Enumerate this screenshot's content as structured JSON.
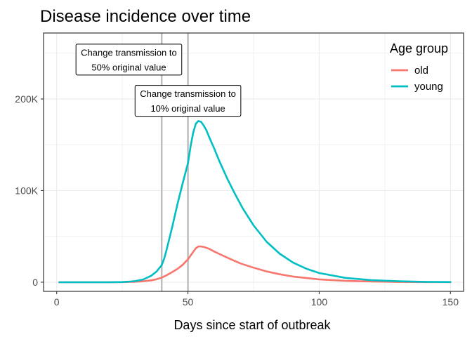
{
  "chart_data": {
    "type": "line",
    "title": "Disease incidence over time",
    "xlabel": "Days since start of outbreak",
    "ylabel": "",
    "xlim": [
      -5,
      155
    ],
    "ylim": [
      -10000,
      272000
    ],
    "x_ticks": [
      0,
      50,
      100,
      150
    ],
    "x_tick_labels": [
      "0",
      "50",
      "100",
      "150"
    ],
    "y_ticks": [
      0,
      100000,
      200000
    ],
    "y_tick_labels": [
      "0",
      "100K",
      "200K"
    ],
    "grid": true,
    "legend": {
      "title": "Age group",
      "position": "top-right"
    },
    "series": [
      {
        "name": "old",
        "color": "#F8766D",
        "x": [
          1,
          10,
          20,
          25,
          30,
          33,
          36,
          38,
          40,
          42,
          44,
          46,
          48,
          50,
          51,
          52,
          53,
          54,
          55,
          56,
          58,
          60,
          63,
          66,
          70,
          75,
          80,
          85,
          90,
          100,
          110,
          120,
          130,
          140,
          150
        ],
        "y": [
          0,
          0,
          0,
          150,
          500,
          1000,
          2000,
          3200,
          5000,
          7800,
          11000,
          14500,
          19000,
          25000,
          29000,
          33000,
          37000,
          39000,
          39000,
          38500,
          36500,
          33500,
          29500,
          25500,
          20500,
          15800,
          11800,
          8600,
          6200,
          3100,
          1500,
          700,
          300,
          120,
          50
        ]
      },
      {
        "name": "young",
        "color": "#00BFC4",
        "x": [
          1,
          10,
          20,
          25,
          28,
          30,
          33,
          36,
          38,
          40,
          41,
          42,
          44,
          46,
          48,
          50,
          51,
          52,
          53,
          54,
          55,
          56,
          57,
          58,
          60,
          62,
          65,
          68,
          71,
          75,
          80,
          85,
          90,
          95,
          100,
          110,
          120,
          130,
          140,
          150
        ],
        "y": [
          0,
          0,
          0,
          200,
          700,
          1300,
          3000,
          7000,
          11500,
          18500,
          26000,
          37000,
          60000,
          85000,
          108000,
          130000,
          148000,
          163000,
          173000,
          176000,
          175000,
          171000,
          166000,
          159000,
          146000,
          132000,
          113000,
          96000,
          80000,
          62000,
          44000,
          31000,
          21500,
          14800,
          10000,
          4700,
          2200,
          1000,
          450,
          200
        ]
      }
    ],
    "reference_lines": [
      {
        "x": 40,
        "color": "#BEBEBE"
      },
      {
        "x": 50,
        "color": "#BEBEBE"
      }
    ],
    "annotations": [
      {
        "lines": [
          "Change transmission to",
          "50% original value"
        ],
        "x": 27.5,
        "y": 243000
      },
      {
        "lines": [
          "Change transmission to",
          "10% original value"
        ],
        "x": 50,
        "y": 198000
      }
    ]
  }
}
